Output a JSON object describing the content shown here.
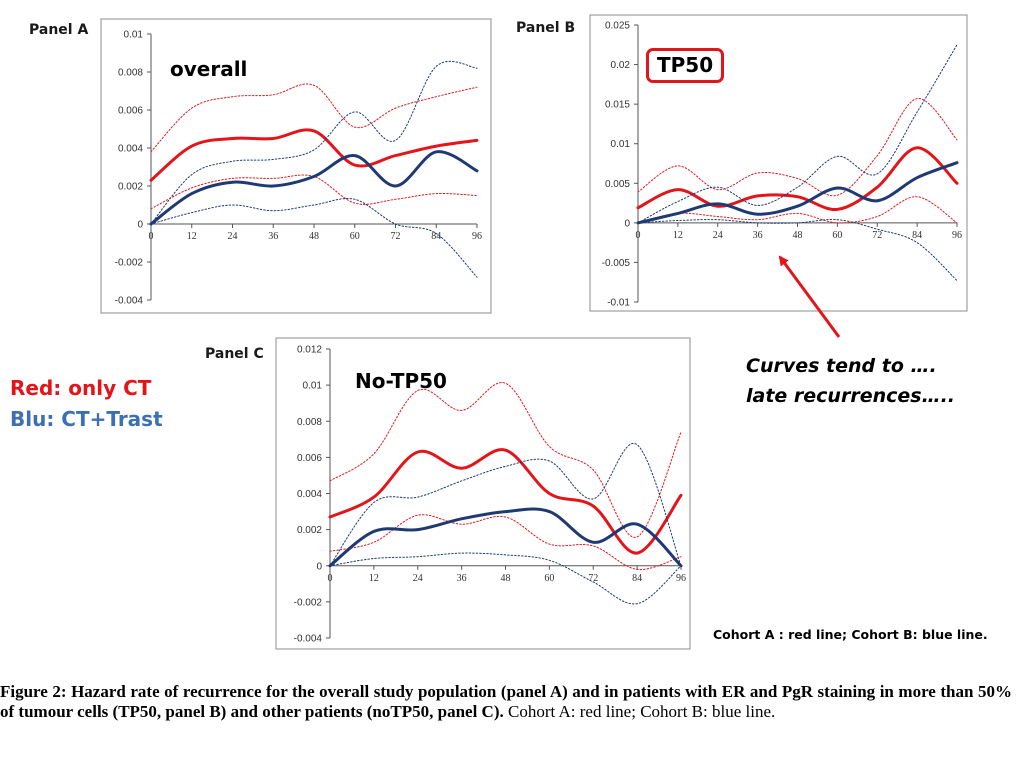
{
  "chart_data": [
    {
      "type": "line",
      "panel": "Panel A",
      "title": "overall",
      "x": [
        0,
        12,
        24,
        36,
        48,
        60,
        72,
        84,
        96
      ],
      "xticks": [
        "0",
        "12",
        "24",
        "36",
        "48",
        "60",
        "72",
        "84",
        "96"
      ],
      "ylim": [
        -0.004,
        0.01
      ],
      "yticks": [
        "0.01",
        "0.008",
        "0.006",
        "0.004",
        "0.002",
        "0",
        "-0.002",
        "-0.004"
      ],
      "ytick_values": [
        0.01,
        0.008,
        0.006,
        0.004,
        0.002,
        0,
        -0.002,
        -0.004
      ],
      "series": [
        {
          "color": "#e3151a",
          "style": "solid",
          "values": [
            0.0023,
            0.0041,
            0.0045,
            0.0045,
            0.0049,
            0.0031,
            0.0036,
            0.0041,
            0.0044
          ]
        },
        {
          "color": "#e3151a",
          "style": "dotted",
          "values": [
            0.0038,
            0.0061,
            0.0067,
            0.0068,
            0.0073,
            0.0051,
            0.0061,
            0.0067,
            0.0072
          ]
        },
        {
          "color": "#e3151a",
          "style": "dotted",
          "values": [
            0.0008,
            0.0019,
            0.0024,
            0.0024,
            0.0025,
            0.0011,
            0.0013,
            0.0016,
            0.0015
          ]
        },
        {
          "color": "#1f3a73",
          "style": "solid",
          "values": [
            0.0,
            0.0016,
            0.0022,
            0.002,
            0.0025,
            0.0036,
            0.002,
            0.0038,
            0.0028
          ]
        },
        {
          "color": "#1f3a73",
          "style": "dotted",
          "values": [
            0.0,
            0.0026,
            0.0033,
            0.0034,
            0.0039,
            0.0059,
            0.0044,
            0.0083,
            0.0082
          ]
        },
        {
          "color": "#1f3a73",
          "style": "dotted",
          "values": [
            0.0,
            0.0006,
            0.001,
            0.0007,
            0.001,
            0.0013,
            0.0,
            -0.0005,
            -0.0028
          ]
        }
      ]
    },
    {
      "type": "line",
      "panel": "Panel B",
      "title": "TP50",
      "x": [
        0,
        12,
        24,
        36,
        48,
        60,
        72,
        84,
        96
      ],
      "xticks": [
        "0",
        "12",
        "24",
        "36",
        "48",
        "60",
        "72",
        "84",
        "96"
      ],
      "ylim": [
        -0.01,
        0.025
      ],
      "yticks": [
        "0.025",
        "0.02",
        "0.015",
        "0.01",
        "0.005",
        "0",
        "-0.005",
        "-0.01"
      ],
      "ytick_values": [
        0.025,
        0.02,
        0.015,
        0.01,
        0.005,
        0,
        -0.005,
        -0.01
      ],
      "series": [
        {
          "color": "#e3151a",
          "style": "solid",
          "values": [
            0.0019,
            0.0042,
            0.0021,
            0.0034,
            0.0033,
            0.0017,
            0.0045,
            0.0095,
            0.005
          ]
        },
        {
          "color": "#e3151a",
          "style": "dotted",
          "values": [
            0.0039,
            0.0072,
            0.0042,
            0.0063,
            0.0056,
            0.0035,
            0.0085,
            0.0157,
            0.0105
          ]
        },
        {
          "color": "#e3151a",
          "style": "dotted",
          "values": [
            0.0,
            0.0012,
            0.0008,
            0.0004,
            0.0012,
            0.0,
            0.0008,
            0.0033,
            0.0
          ]
        },
        {
          "color": "#1f3a73",
          "style": "solid",
          "values": [
            0.0,
            0.0012,
            0.0024,
            0.0011,
            0.0021,
            0.0044,
            0.0028,
            0.0057,
            0.0076
          ]
        },
        {
          "color": "#1f3a73",
          "style": "dotted",
          "values": [
            0.0,
            0.0027,
            0.0045,
            0.0022,
            0.0045,
            0.0084,
            0.0062,
            0.014,
            0.0225
          ]
        },
        {
          "color": "#1f3a73",
          "style": "dotted",
          "values": [
            0.0,
            0.0003,
            0.0004,
            0.0,
            0.0,
            0.0004,
            -0.0008,
            -0.0025,
            -0.0073
          ]
        }
      ]
    },
    {
      "type": "line",
      "panel": "Panel C",
      "title": "No-TP50",
      "x": [
        0,
        12,
        24,
        36,
        48,
        60,
        72,
        84,
        96
      ],
      "xticks": [
        "0",
        "12",
        "24",
        "36",
        "48",
        "60",
        "72",
        "84",
        "96"
      ],
      "ylim": [
        -0.004,
        0.012
      ],
      "yticks": [
        "0.012",
        "0.01",
        "0.008",
        "0.006",
        "0.004",
        "0.002",
        "0",
        "-0.002",
        "-0.004"
      ],
      "ytick_values": [
        0.012,
        0.01,
        0.008,
        0.006,
        0.004,
        0.002,
        0,
        -0.002,
        -0.004
      ],
      "series": [
        {
          "color": "#e3151a",
          "style": "solid",
          "values": [
            0.0027,
            0.0038,
            0.0063,
            0.0054,
            0.0064,
            0.004,
            0.0033,
            0.0007,
            0.0039
          ]
        },
        {
          "color": "#e3151a",
          "style": "dotted",
          "values": [
            0.0047,
            0.0062,
            0.0097,
            0.0086,
            0.0101,
            0.0066,
            0.0053,
            0.0016,
            0.0074
          ]
        },
        {
          "color": "#e3151a",
          "style": "dotted",
          "values": [
            0.0008,
            0.0013,
            0.0028,
            0.0023,
            0.0027,
            0.0012,
            0.0011,
            -0.0002,
            0.0005
          ]
        },
        {
          "color": "#1f3a73",
          "style": "solid",
          "values": [
            0.0,
            0.0019,
            0.002,
            0.0026,
            0.003,
            0.003,
            0.0013,
            0.0023,
            0.0
          ]
        },
        {
          "color": "#1f3a73",
          "style": "dotted",
          "values": [
            0.0,
            0.0035,
            0.0038,
            0.0047,
            0.0055,
            0.0058,
            0.0037,
            0.0067,
            0.0
          ]
        },
        {
          "color": "#1f3a73",
          "style": "dotted",
          "values": [
            0.0,
            0.0004,
            0.0005,
            0.0007,
            0.0006,
            0.0003,
            -0.0009,
            -0.0021,
            0.0
          ]
        }
      ]
    }
  ],
  "legend": {
    "red": "Red: only CT",
    "blue": "Blu: CT+Trast"
  },
  "annotation": {
    "line1": "Curves tend to ….",
    "line2": "late recurrences….."
  },
  "cohort_note": "Cohort A : red line; Cohort B: blue line.",
  "caption": {
    "bold": "Figure 2: Hazard rate of recurrence for the overall study population (panel A) and in patients with ER and PgR staining in more than 50% of tumour cells (TP50, panel B) and other patients (noTP50, panel C).",
    "normal": " Cohort A: red line; Cohort B: blue line."
  },
  "colors": {
    "red": "#e3151a",
    "blue": "#1f3a73",
    "label_blue": "#3d6fb4"
  }
}
